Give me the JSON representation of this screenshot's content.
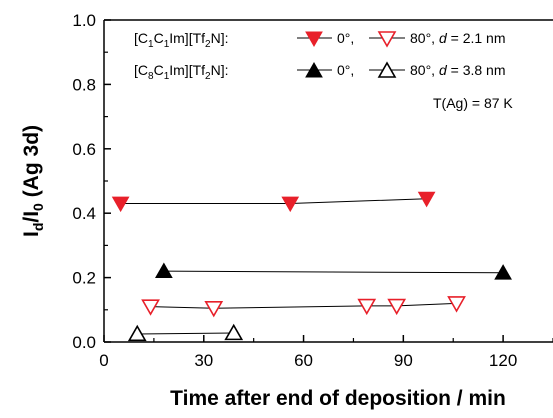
{
  "chart_data": {
    "type": "scatter",
    "xlabel": "Time after end of deposition / min",
    "ylabel": "I_d/I_0 (Ag 3d)",
    "xlim": [
      0,
      135
    ],
    "ylim": [
      0,
      1.0
    ],
    "x_ticks": [
      "0",
      "30",
      "60",
      "90",
      "120"
    ],
    "y_ticks": [
      "0.0",
      "0.2",
      "0.4",
      "0.6",
      "0.8",
      "1.0"
    ],
    "grid": false,
    "legend_position": "top-right",
    "legend_rows": [
      {
        "compound_prefix": "[C",
        "sub1": "1",
        "mid": "C",
        "sub2": "1",
        "rest": "Im][Tf",
        "sub3": "2",
        "tail": "N]:",
        "label_a": "0°,",
        "label_b": "80°, ",
        "d_text": "d",
        "d_value": " = 2.1 nm"
      },
      {
        "compound_prefix": "[C",
        "sub1": "8",
        "mid": "C",
        "sub2": "1",
        "rest": "Im][Tf",
        "sub3": "2",
        "tail": "N]:",
        "label_a": "0°,",
        "label_b": "80°, ",
        "d_text": "d",
        "d_value": " = 3.8 nm"
      }
    ],
    "annotation": "T(Ag) = 87 K",
    "series": [
      {
        "marker": "triangle-down",
        "filled": true,
        "color": "#e8202a",
        "x": [
          5,
          56,
          97
        ],
        "y": [
          0.43,
          0.43,
          0.445
        ]
      },
      {
        "marker": "triangle-down",
        "filled": false,
        "color": "#e8202a",
        "x": [
          14,
          33,
          79,
          88,
          106
        ],
        "y": [
          0.11,
          0.105,
          0.112,
          0.112,
          0.12
        ]
      },
      {
        "marker": "triangle-up",
        "filled": true,
        "color": "#000000",
        "x": [
          18,
          120
        ],
        "y": [
          0.22,
          0.215
        ]
      },
      {
        "marker": "triangle-up",
        "filled": false,
        "color": "#000000",
        "x": [
          10,
          39
        ],
        "y": [
          0.025,
          0.028
        ]
      }
    ]
  }
}
